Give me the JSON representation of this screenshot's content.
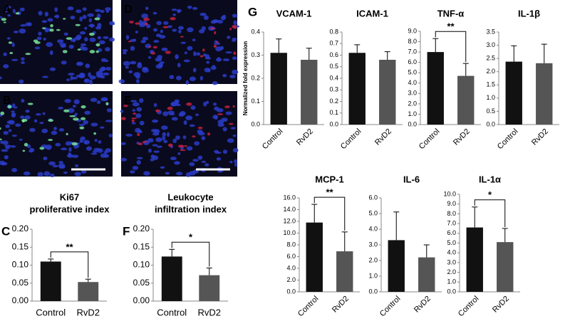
{
  "panel_labels": [
    "A",
    "B",
    "C",
    "D",
    "E",
    "F",
    "G"
  ],
  "chart_data": [
    {
      "type": "bar",
      "title_lines": [
        "Ki67",
        "proliferative index"
      ],
      "categories": [
        "Control",
        "RvD2"
      ],
      "values": [
        0.11,
        0.053
      ],
      "errors": [
        0.007,
        0.008
      ],
      "colors": [
        "#111111",
        "#555555"
      ],
      "ylim": [
        0,
        0.2
      ],
      "yticks": [
        {
          "value": 0,
          "label": "0.00"
        },
        0.05,
        {
          "value": 0.1,
          "label": "0.10"
        },
        0.15,
        {
          "value": 0.2,
          "label": "0.20"
        }
      ],
      "annotation": "**"
    },
    {
      "type": "bar",
      "title_lines": [
        "Leukocyte",
        "infiltration index"
      ],
      "categories": [
        "Control",
        "RvD2"
      ],
      "values": [
        0.124,
        0.072
      ],
      "errors": [
        0.02,
        0.02
      ],
      "colors": [
        "#111111",
        "#555555"
      ],
      "ylim": [
        0,
        0.2
      ],
      "yticks": [
        {
          "value": 0,
          "label": "0.00"
        },
        0.05,
        {
          "value": 0.1,
          "label": "0.10"
        },
        0.15,
        {
          "value": 0.2,
          "label": "0.20"
        }
      ],
      "annotation": "*"
    },
    {
      "type": "bar",
      "title_lines": [
        "VCAM-1"
      ],
      "ylabel": "Normalized fold expression",
      "categories": [
        "Control",
        "RvD2"
      ],
      "values": [
        0.31,
        0.28
      ],
      "errors": [
        0.06,
        0.05
      ],
      "colors": [
        "#111111",
        "#555555"
      ],
      "ylim": [
        0,
        0.4
      ],
      "yticks": [
        {
          "value": 0,
          "label": "0.0"
        },
        0.1,
        0.2,
        0.3,
        0.4
      ]
    },
    {
      "type": "bar",
      "title_lines": [
        "ICAM-1"
      ],
      "categories": [
        "Control",
        "RvD2"
      ],
      "values": [
        0.62,
        0.56
      ],
      "errors": [
        0.07,
        0.07
      ],
      "colors": [
        "#111111",
        "#555555"
      ],
      "ylim": [
        0,
        0.8
      ],
      "yticks": [
        {
          "value": 0,
          "label": "0.0"
        },
        0.1,
        0.2,
        0.3,
        0.4,
        0.5,
        0.6,
        0.7,
        0.8
      ]
    },
    {
      "type": "bar",
      "title_lines": [
        "TNF-α"
      ],
      "categories": [
        "Control",
        "RvD2"
      ],
      "values": [
        7.0,
        4.7
      ],
      "errors": [
        1.3,
        1.2
      ],
      "colors": [
        "#111111",
        "#555555"
      ],
      "ylim": [
        0,
        9
      ],
      "yticks": [
        {
          "value": 0,
          "label": "0.0"
        },
        {
          "value": 1,
          "label": "1.0"
        },
        {
          "value": 2,
          "label": "2.0"
        },
        {
          "value": 3,
          "label": "3.0"
        },
        {
          "value": 4,
          "label": "4.0"
        },
        {
          "value": 5,
          "label": "5.0"
        },
        {
          "value": 6,
          "label": "6.0"
        },
        {
          "value": 7,
          "label": "7.0"
        },
        {
          "value": 8,
          "label": "8.0"
        },
        {
          "value": 9,
          "label": "9.0"
        }
      ],
      "annotation": "**"
    },
    {
      "type": "bar",
      "title_lines": [
        "IL-1β"
      ],
      "categories": [
        "Control",
        "RvD2"
      ],
      "values": [
        2.38,
        2.32
      ],
      "errors": [
        0.6,
        0.72
      ],
      "colors": [
        "#111111",
        "#555555"
      ],
      "ylim": [
        0,
        3.5
      ],
      "yticks": [
        {
          "value": 0,
          "label": "0.0"
        },
        0.5,
        {
          "value": 1,
          "label": "1.0"
        },
        1.5,
        {
          "value": 2,
          "label": "2.0"
        },
        2.5,
        {
          "value": 3,
          "label": "3.0"
        },
        3.5
      ]
    },
    {
      "type": "bar",
      "title_lines": [
        "MCP-1"
      ],
      "categories": [
        "Control",
        "RvD2"
      ],
      "values": [
        11.8,
        6.9
      ],
      "errors": [
        3.1,
        3.3
      ],
      "colors": [
        "#111111",
        "#555555"
      ],
      "ylim": [
        0,
        16
      ],
      "yticks": [
        {
          "value": 0,
          "label": "0.0"
        },
        {
          "value": 2,
          "label": "2.0"
        },
        {
          "value": 4,
          "label": "4.0"
        },
        {
          "value": 6,
          "label": "6.0"
        },
        {
          "value": 8,
          "label": "8.0"
        },
        {
          "value": 10,
          "label": "10.0"
        },
        {
          "value": 12,
          "label": "12.0"
        },
        {
          "value": 14,
          "label": "14.0"
        },
        {
          "value": 16,
          "label": "16.0"
        }
      ],
      "annotation": "**"
    },
    {
      "type": "bar",
      "title_lines": [
        "IL-6"
      ],
      "categories": [
        "Control",
        "RvD2"
      ],
      "values": [
        3.3,
        2.2
      ],
      "errors": [
        1.8,
        0.8
      ],
      "colors": [
        "#111111",
        "#555555"
      ],
      "ylim": [
        0,
        6
      ],
      "yticks": [
        {
          "value": 0,
          "label": "0.0"
        },
        {
          "value": 1,
          "label": "1.0"
        },
        {
          "value": 2,
          "label": "2.0"
        },
        {
          "value": 3,
          "label": "3.0"
        },
        {
          "value": 4,
          "label": "4.0"
        },
        {
          "value": 5,
          "label": "5.0"
        },
        {
          "value": 6,
          "label": "6.0"
        }
      ]
    },
    {
      "type": "bar",
      "title_lines": [
        "IL-1α"
      ],
      "categories": [
        "Control",
        "RvD2"
      ],
      "values": [
        6.6,
        5.1
      ],
      "errors": [
        2.1,
        1.4
      ],
      "colors": [
        "#111111",
        "#555555"
      ],
      "ylim": [
        0,
        10
      ],
      "yticks": [
        {
          "value": 0,
          "label": "0.0"
        },
        {
          "value": 1,
          "label": "1.0"
        },
        {
          "value": 2,
          "label": "2.0"
        },
        {
          "value": 3,
          "label": "3.0"
        },
        {
          "value": 4,
          "label": "4.0"
        },
        {
          "value": 5,
          "label": "5.0"
        },
        {
          "value": 6,
          "label": "6.0"
        },
        {
          "value": 7,
          "label": "7.0"
        },
        {
          "value": 8,
          "label": "8.0"
        },
        {
          "value": 9,
          "label": "9.0"
        },
        {
          "value": 10,
          "label": "10.0"
        }
      ],
      "annotation": "*"
    }
  ]
}
